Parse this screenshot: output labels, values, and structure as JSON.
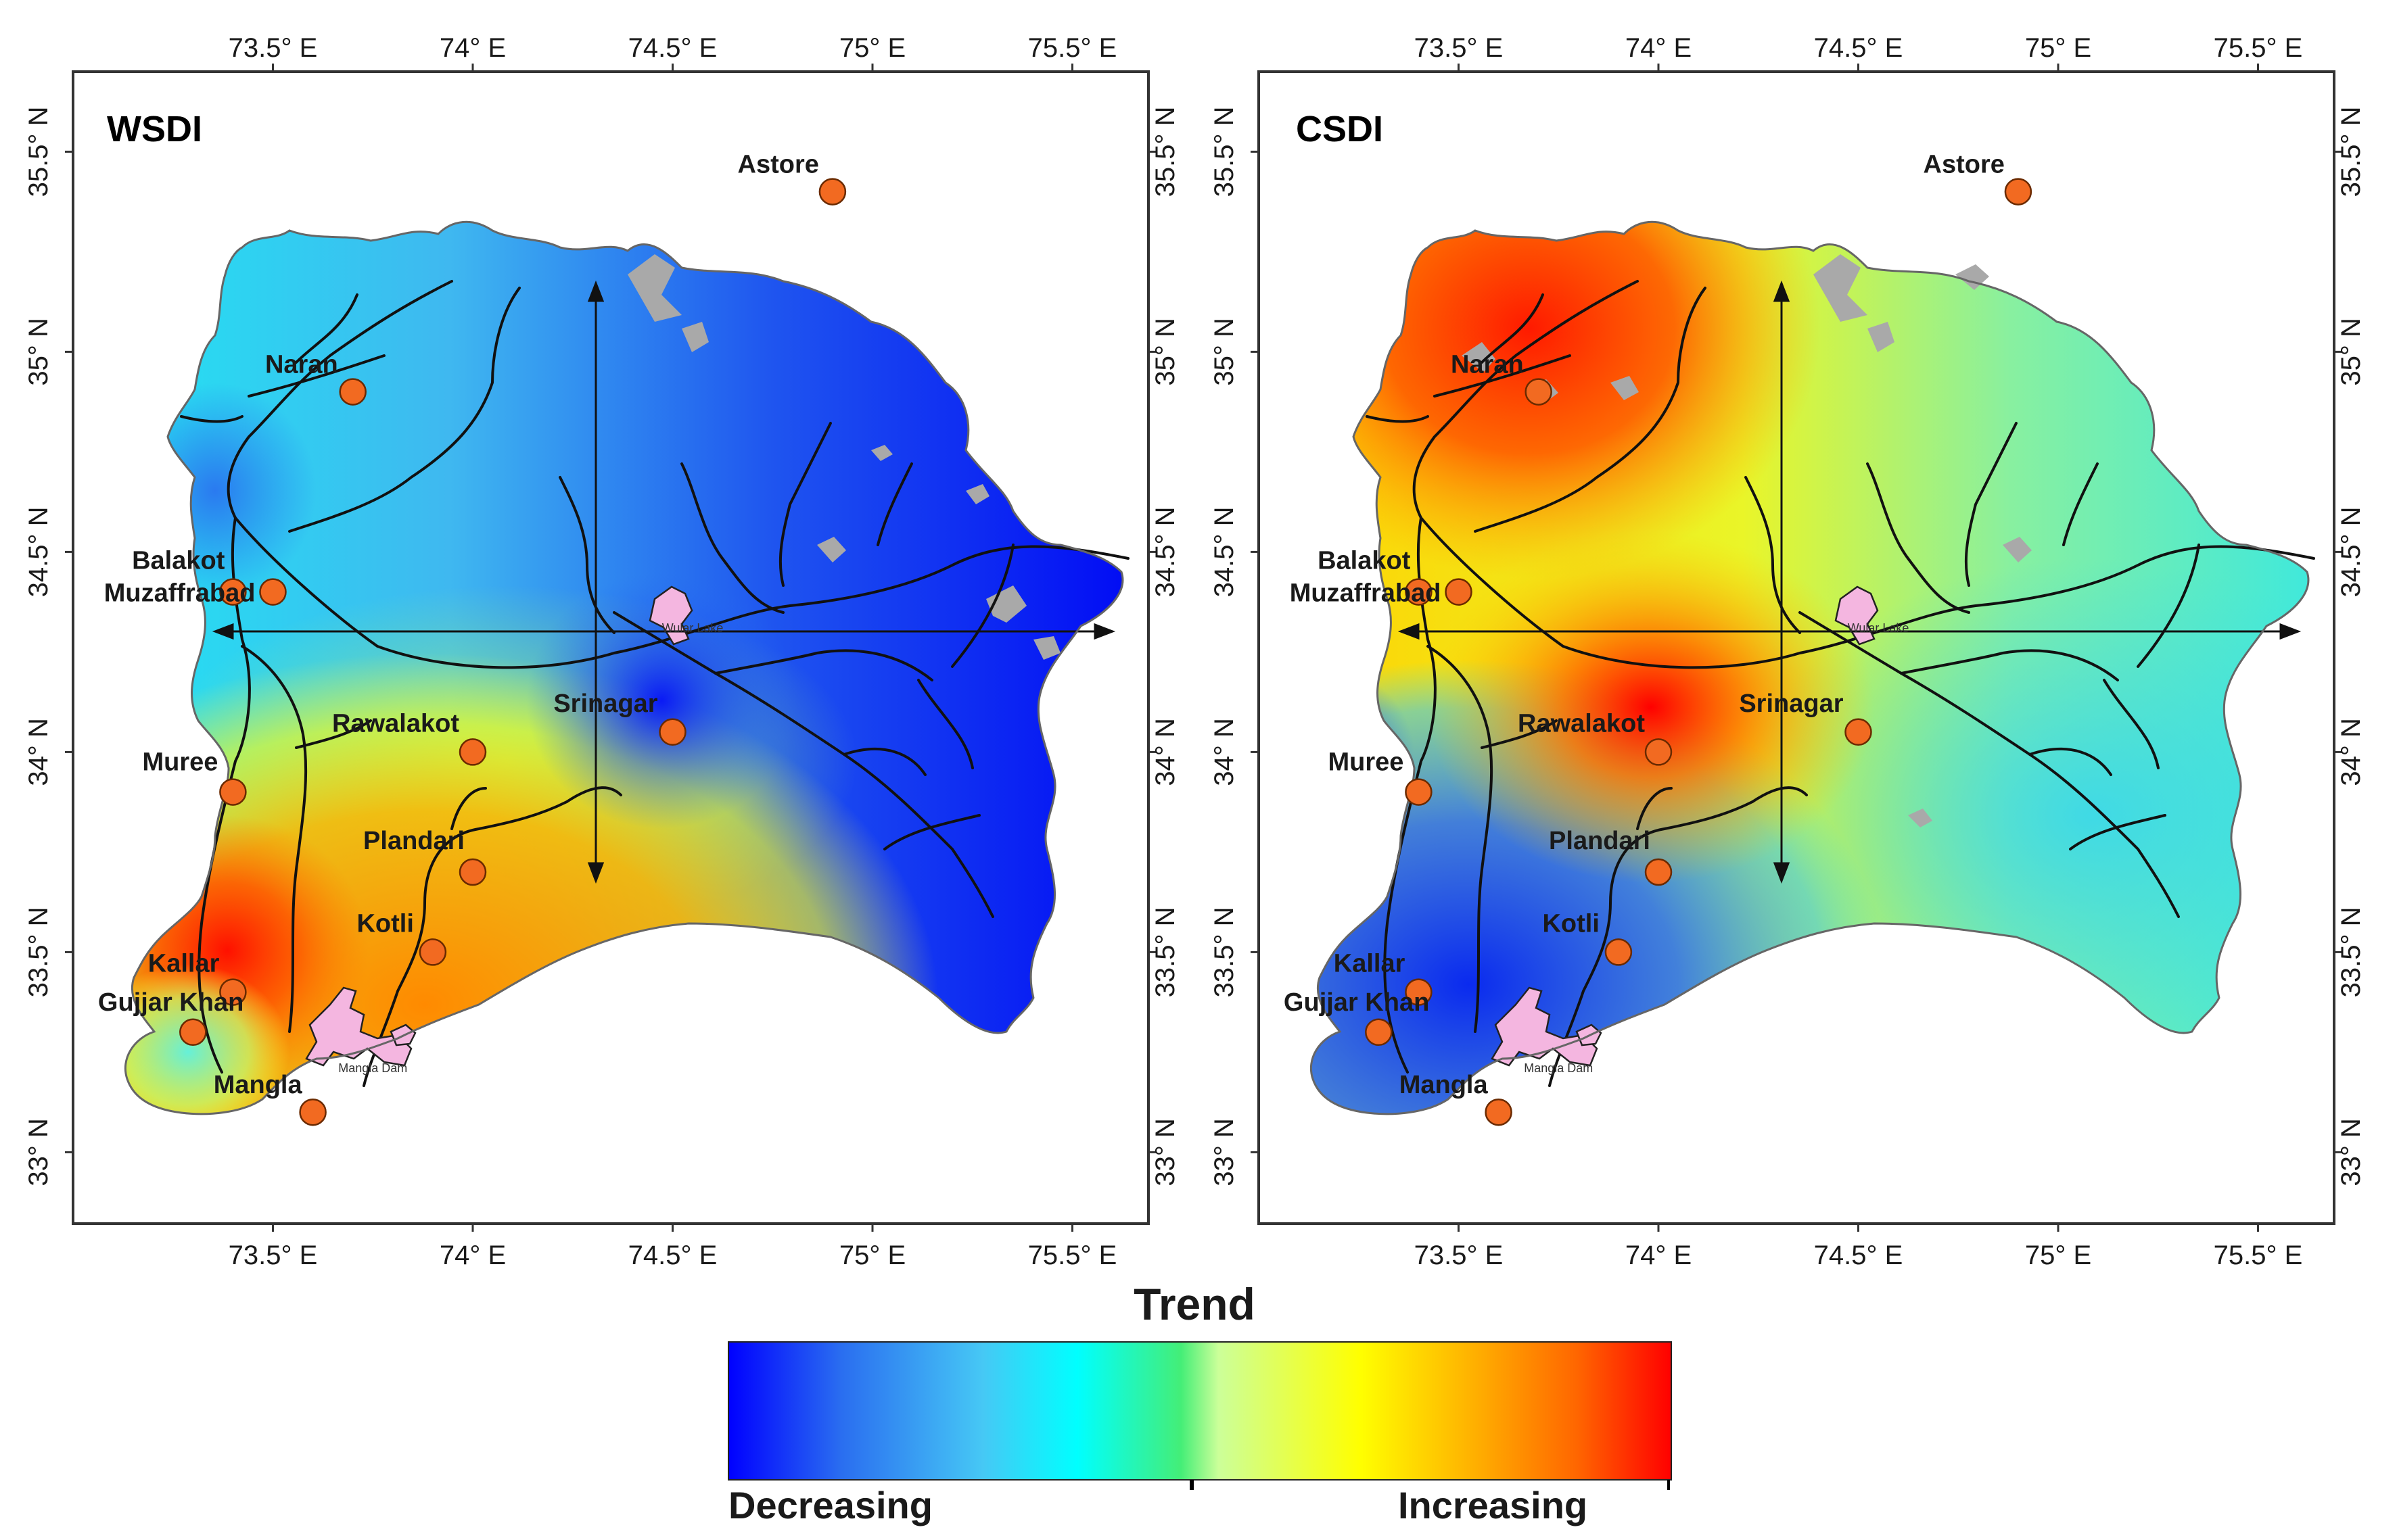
{
  "maps": [
    {
      "panel_label": "WSDI",
      "field": "wsdi",
      "stations": [
        {
          "name": "Astore",
          "lon": 74.9,
          "lat": 35.4
        },
        {
          "name": "Naran",
          "lon": 73.7,
          "lat": 34.9
        },
        {
          "name": "Balakot",
          "lon": 73.4,
          "lat": 34.4
        },
        {
          "name": "Muzaffrabad",
          "lon": 73.5,
          "lat": 34.4
        },
        {
          "name": "Rawalakot",
          "lon": 74.0,
          "lat": 34.0
        },
        {
          "name": "Srinagar",
          "lon": 74.5,
          "lat": 34.05
        },
        {
          "name": "Muree",
          "lon": 73.4,
          "lat": 33.9
        },
        {
          "name": "Plandari",
          "lon": 74.0,
          "lat": 33.7
        },
        {
          "name": "Kotli",
          "lon": 73.9,
          "lat": 33.5
        },
        {
          "name": "Kallar",
          "lon": 73.4,
          "lat": 33.4
        },
        {
          "name": "Gujjar Khan",
          "lon": 73.3,
          "lat": 33.3
        },
        {
          "name": "Mangla",
          "lon": 73.6,
          "lat": 33.1
        }
      ]
    },
    {
      "panel_label": "CSDI",
      "field": "csdi",
      "stations": [
        {
          "name": "Astore",
          "lon": 74.9,
          "lat": 35.4
        },
        {
          "name": "Naran",
          "lon": 73.7,
          "lat": 34.9
        },
        {
          "name": "Balakot",
          "lon": 73.4,
          "lat": 34.4
        },
        {
          "name": "Muzaffrabad",
          "lon": 73.5,
          "lat": 34.4
        },
        {
          "name": "Rawalakot",
          "lon": 74.0,
          "lat": 34.0
        },
        {
          "name": "Srinagar",
          "lon": 74.5,
          "lat": 34.05
        },
        {
          "name": "Muree",
          "lon": 73.4,
          "lat": 33.9
        },
        {
          "name": "Plandari",
          "lon": 74.0,
          "lat": 33.7
        },
        {
          "name": "Kotli",
          "lon": 73.9,
          "lat": 33.5
        },
        {
          "name": "Kallar",
          "lon": 73.4,
          "lat": 33.4
        },
        {
          "name": "Gujjar Khan",
          "lon": 73.3,
          "lat": 33.3
        },
        {
          "name": "Mangla",
          "lon": 73.6,
          "lat": 33.1
        }
      ]
    }
  ],
  "lon_ticks": [
    {
      "value": 73.5,
      "label": "73.5° E"
    },
    {
      "value": 74.0,
      "label": "74° E"
    },
    {
      "value": 74.5,
      "label": "74.5° E"
    },
    {
      "value": 75.0,
      "label": "75° E"
    },
    {
      "value": 75.5,
      "label": "75.5° E"
    }
  ],
  "lat_ticks": [
    {
      "value": 33.0,
      "label": "33° N"
    },
    {
      "value": 33.5,
      "label": "33.5° N"
    },
    {
      "value": 34.0,
      "label": "34° N"
    },
    {
      "value": 34.5,
      "label": "34.5° N"
    },
    {
      "value": 35.0,
      "label": "35° N"
    },
    {
      "value": 35.5,
      "label": "35.5° N"
    }
  ],
  "lakes": [
    {
      "label": "Wular Lake",
      "lon": 74.55,
      "lat": 34.3
    },
    {
      "label": "Mangla Dam",
      "lon": 73.75,
      "lat": 33.2
    }
  ],
  "legend": {
    "title": "Trend",
    "low_label": "Decreasing",
    "high_label": "Increasing",
    "colors": [
      "#0000ff",
      "#2a6ef0",
      "#46c8f5",
      "#00ffff",
      "#44ee77",
      "#ccff99",
      "#ffff00",
      "#ffaa00",
      "#ff6600",
      "#ff0000"
    ]
  },
  "station_color": "#f26a21"
}
